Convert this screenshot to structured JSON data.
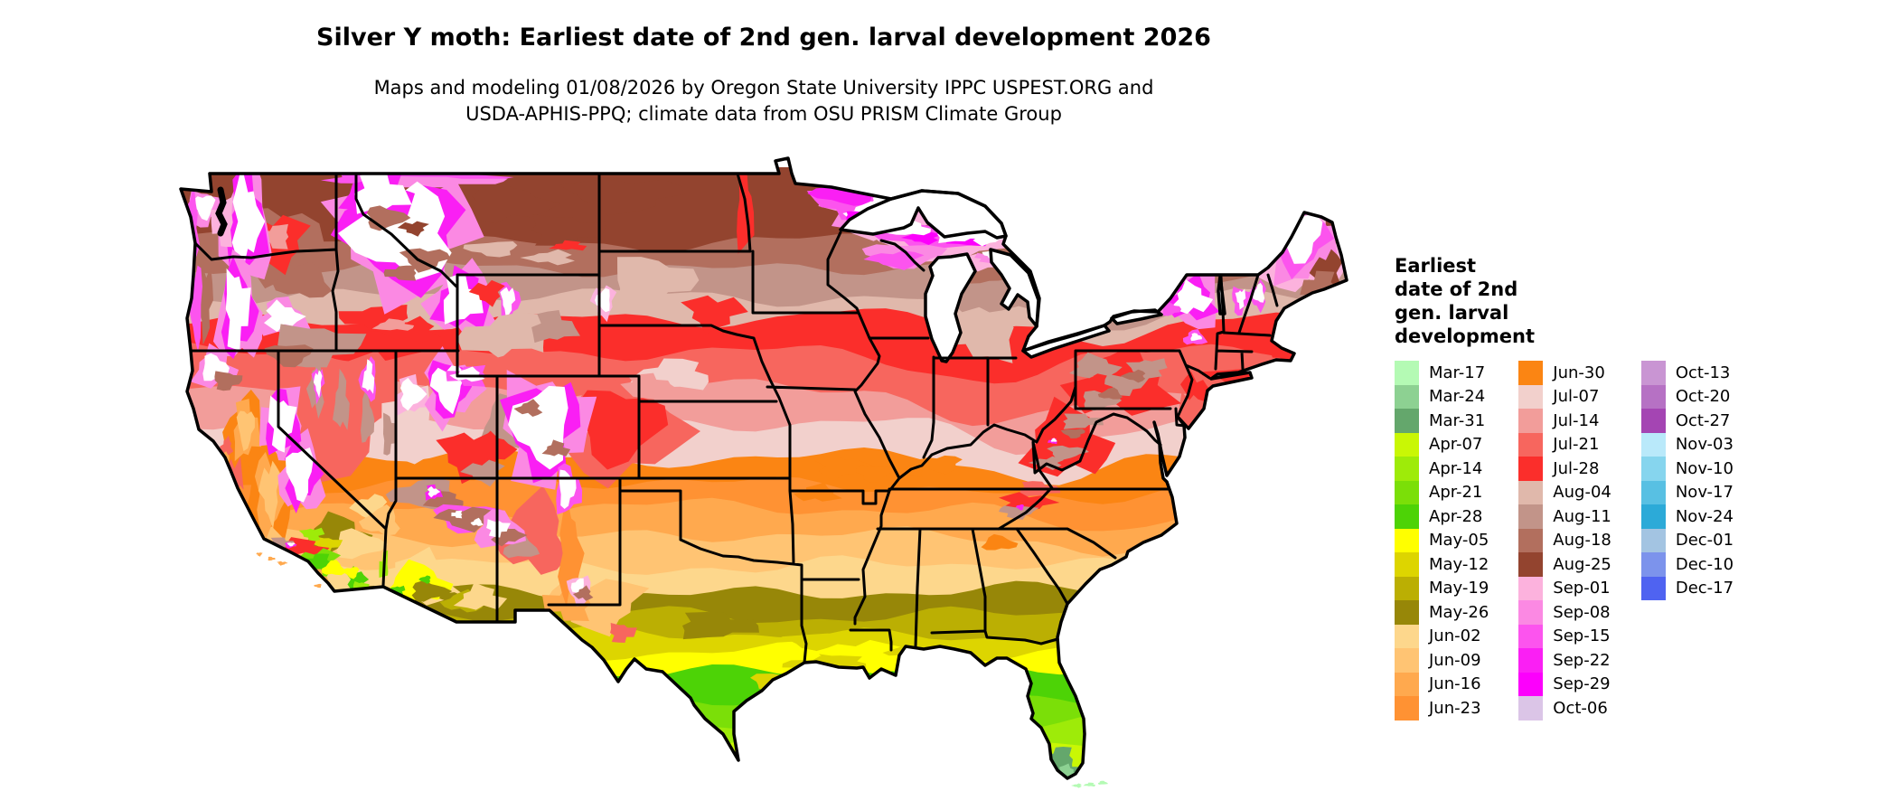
{
  "title": "Silver Y moth: Earliest date of 2nd gen. larval development 2026",
  "subtitle": {
    "line1": "Maps and modeling 01/08/2026 by Oregon State University IPPC USPEST.ORG and",
    "line2": "USDA-APHIS-PPQ; climate data from OSU PRISM Climate Group"
  },
  "legend": {
    "title_lines": [
      "Earliest",
      "date of 2nd",
      "gen. larval",
      "development"
    ],
    "columns": [
      [
        {
          "label": "Mar-17",
          "color": "#b4fab4"
        },
        {
          "label": "Mar-24",
          "color": "#8dd192"
        },
        {
          "label": "Mar-31",
          "color": "#64a76c"
        },
        {
          "label": "Apr-07",
          "color": "#c9f705"
        },
        {
          "label": "Apr-14",
          "color": "#9eeb09"
        },
        {
          "label": "Apr-21",
          "color": "#7bdf08"
        },
        {
          "label": "Apr-28",
          "color": "#4dd306"
        },
        {
          "label": "May-05",
          "color": "#ffff00"
        },
        {
          "label": "May-12",
          "color": "#ddd500"
        },
        {
          "label": "May-19",
          "color": "#bbaf03"
        },
        {
          "label": "May-26",
          "color": "#978708"
        },
        {
          "label": "Jun-02",
          "color": "#fdd78c"
        },
        {
          "label": "Jun-09",
          "color": "#ffc473"
        },
        {
          "label": "Jun-16",
          "color": "#ffa94e"
        },
        {
          "label": "Jun-23",
          "color": "#ff9233"
        }
      ],
      [
        {
          "label": "Jun-30",
          "color": "#fb8513"
        },
        {
          "label": "Jul-07",
          "color": "#f2d0cc"
        },
        {
          "label": "Jul-14",
          "color": "#f29d9a"
        },
        {
          "label": "Jul-21",
          "color": "#f7665e"
        },
        {
          "label": "Jul-28",
          "color": "#fb2e2b"
        },
        {
          "label": "Aug-04",
          "color": "#e0b8ab"
        },
        {
          "label": "Aug-11",
          "color": "#c29489"
        },
        {
          "label": "Aug-18",
          "color": "#b26f5e"
        },
        {
          "label": "Aug-25",
          "color": "#93442f"
        },
        {
          "label": "Sep-01",
          "color": "#fcb2dd"
        },
        {
          "label": "Sep-08",
          "color": "#fb89e3"
        },
        {
          "label": "Sep-15",
          "color": "#fc54ee"
        },
        {
          "label": "Sep-22",
          "color": "#fa1ff4"
        },
        {
          "label": "Sep-29",
          "color": "#fc00fc"
        },
        {
          "label": "Oct-06",
          "color": "#dbc5e7"
        }
      ],
      [
        {
          "label": "Oct-13",
          "color": "#c995d3"
        },
        {
          "label": "Oct-20",
          "color": "#b671c4"
        },
        {
          "label": "Oct-27",
          "color": "#a445b3"
        },
        {
          "label": "Nov-03",
          "color": "#b9e9fa"
        },
        {
          "label": "Nov-10",
          "color": "#86d5ee"
        },
        {
          "label": "Nov-17",
          "color": "#58c0e3"
        },
        {
          "label": "Nov-24",
          "color": "#2caad8"
        },
        {
          "label": "Dec-01",
          "color": "#a3c4e2"
        },
        {
          "label": "Dec-10",
          "color": "#7c93ec"
        },
        {
          "label": "Dec-17",
          "color": "#4f63f1"
        }
      ]
    ]
  },
  "chart_data": {
    "type": "choropleth-map",
    "region": "Contiguous United States with state borders",
    "variable": "Earliest date of 2nd generation larval development, 2026",
    "title": "Silver Y moth: Earliest date of 2nd gen. larval development 2026",
    "legend_position": "right",
    "no_data_color": "#ffffff",
    "no_data_meaning": "White areas (high mountains of the West, northern Maine, Adirondacks, north-woods cores) = development later than shown classes / none",
    "classes_are_weekly_dates": true,
    "regions_depicted": [
      {
        "area": "Southern Florida and Florida Keys",
        "value": "Mar-17 to Mar-31"
      },
      {
        "area": "Central Florida and the southern tip of Texas",
        "value": "Apr-07 to Apr-28"
      },
      {
        "area": "Gulf Coast: south Texas coast, southern Louisiana, coastal Mississippi/Alabama, north Florida",
        "value": "May-05 to May-26"
      },
      {
        "area": "Southern Plains and Southeast: Texas, Oklahoma, Arkansas, Deep South, Carolina coastal plain",
        "value": "Jun-02 to Jun-30"
      },
      {
        "area": "Southwestern deserts: southern California (LA basin, Imperial Valley), southern Arizona (Yuma-Phoenix-Tucson)",
        "value": "Apr-14 to May-26"
      },
      {
        "area": "California Central Valley",
        "value": "Jun-09 to Jun-30"
      },
      {
        "area": "Mid-latitudes: Kansas, Missouri, Kentucky, Virginia piedmont, southern Illinois/Indiana/Ohio, coastal mid-Atlantic",
        "value": "Jul-07 to Jul-28"
      },
      {
        "area": "Great Basin valleys, Snake River Plain, Columbia Basin, eastern Colorado plains",
        "value": "Jul-14 to Jul-28"
      },
      {
        "area": "Northern tier: Montana, the Dakotas, Minnesota, Wisconsin, Michigan, upstate New York, northern New England, Appalachian ridges",
        "value": "Aug-04 to Aug-25"
      },
      {
        "area": "Canadian border fringe, Lake Superior shores, around northern Maine and western mountain snow zones",
        "value": "Sep-01 to Sep-29"
      },
      {
        "area": "Legend classes Oct-06 through Dec-17 shown in key; barely visible on map",
        "value": "Oct-06 to Dec-17"
      }
    ]
  }
}
